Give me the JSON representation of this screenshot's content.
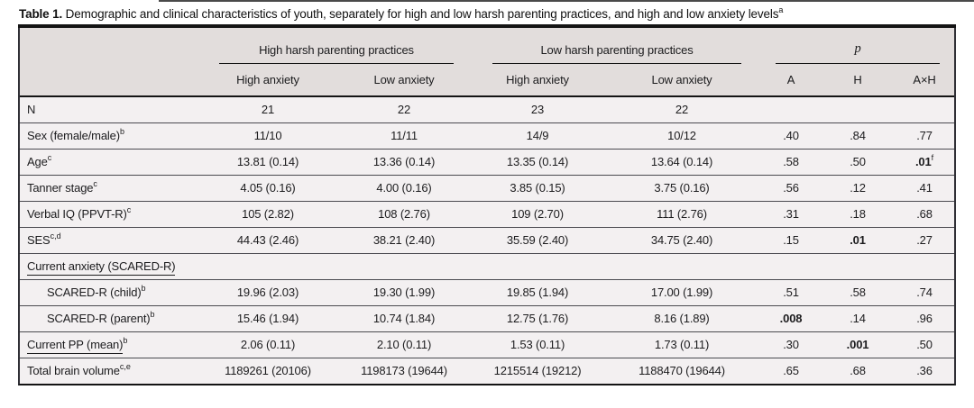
{
  "caption": {
    "label": "Table 1.",
    "text": " Demographic and clinical characteristics of youth, separately for high and low harsh parenting practices, and high and low anxiety levels",
    "note_mark": "a"
  },
  "table": {
    "colors": {
      "header_bg": "#e2dddc",
      "body_bg": "#f3f0f1",
      "thick_rule": "#141414",
      "row_line": "#4a4a50"
    },
    "header": {
      "groups": [
        {
          "label": "High harsh parenting practices",
          "span": 2
        },
        {
          "label": "Low harsh parenting practices",
          "span": 2
        },
        {
          "label": "p",
          "span": 3,
          "italic": true
        }
      ],
      "columns": [
        "High anxiety",
        "Low anxiety",
        "High anxiety",
        "Low anxiety",
        "A",
        "H",
        "A×H"
      ]
    },
    "rows": [
      {
        "label": "N",
        "values": [
          "21",
          "22",
          "23",
          "22"
        ],
        "p": [
          "",
          "",
          ""
        ]
      },
      {
        "label": "Sex (female/male)",
        "label_sup": "b",
        "values": [
          "11/10",
          "11/11",
          "14/9",
          "10/12"
        ],
        "p": [
          ".40",
          ".84",
          ".77"
        ]
      },
      {
        "label": "Age",
        "label_sup": "c",
        "values": [
          "13.81 (0.14)",
          "13.36 (0.14)",
          "13.35 (0.14)",
          "13.64 (0.14)"
        ],
        "p": [
          ".58",
          ".50",
          {
            "t": ".01",
            "bold": true,
            "sup": "f"
          }
        ]
      },
      {
        "label": "Tanner stage",
        "label_sup": "c",
        "values": [
          "4.05 (0.16)",
          "4.00 (0.16)",
          "3.85 (0.15)",
          "3.75 (0.16)"
        ],
        "p": [
          ".56",
          ".12",
          ".41"
        ]
      },
      {
        "label": "Verbal IQ (PPVT-R)",
        "label_sup": "c",
        "values": [
          "105 (2.82)",
          "108 (2.76)",
          "109 (2.70)",
          "111 (2.76)"
        ],
        "p": [
          ".31",
          ".18",
          ".68"
        ]
      },
      {
        "label": "SES",
        "label_sup": "c,d",
        "values": [
          "44.43 (2.46)",
          "38.21 (2.40)",
          "35.59 (2.40)",
          "34.75 (2.40)"
        ],
        "p": [
          ".15",
          {
            "t": ".01",
            "bold": true
          },
          ".27"
        ]
      },
      {
        "label": "Current anxiety (SCARED-R)",
        "underline": true,
        "values": [
          "",
          "",
          "",
          ""
        ],
        "p": [
          "",
          "",
          ""
        ]
      },
      {
        "label": "SCARED-R (child)",
        "label_sup": "b",
        "indent": true,
        "values": [
          "19.96 (2.03)",
          "19.30 (1.99)",
          "19.85 (1.94)",
          "17.00 (1.99)"
        ],
        "p": [
          ".51",
          ".58",
          ".74"
        ]
      },
      {
        "label": "SCARED-R (parent)",
        "label_sup": "b",
        "indent": true,
        "values": [
          "15.46 (1.94)",
          "10.74 (1.84)",
          "12.75 (1.76)",
          "8.16 (1.89)"
        ],
        "p": [
          {
            "t": ".008",
            "bold": true
          },
          ".14",
          ".96"
        ]
      },
      {
        "label": "Current PP (mean)",
        "label_sup": "b",
        "underline": true,
        "values": [
          "2.06 (0.11)",
          "2.10 (0.11)",
          "1.53 (0.11)",
          "1.73 (0.11)"
        ],
        "p": [
          ".30",
          {
            "t": ".001",
            "bold": true
          },
          ".50"
        ]
      },
      {
        "label": "Total brain volume",
        "label_sup": "c,e",
        "values": [
          "1189261 (20106)",
          "1198173 (19644)",
          "1215514 (19212)",
          "1188470 (19644)"
        ],
        "p": [
          ".65",
          ".68",
          ".36"
        ]
      }
    ]
  }
}
